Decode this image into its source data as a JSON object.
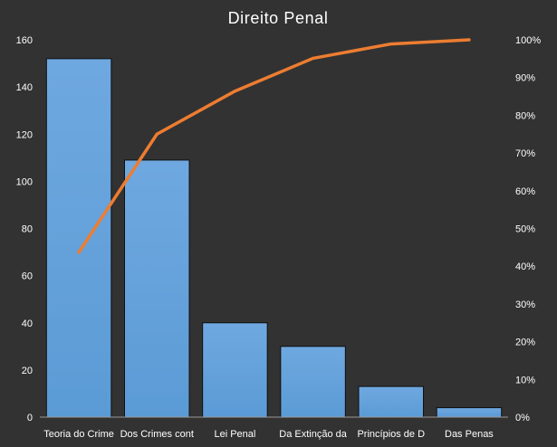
{
  "chart_data": {
    "type": "bar",
    "title": "Direito Penal",
    "xlabel": "",
    "ylabel": "",
    "categories": [
      "Teoria do Crime",
      "Dos Crimes cont",
      "Lei Penal",
      "Da Extinção da",
      "Princípios de D",
      "Das Penas"
    ],
    "series": [
      {
        "type": "bar",
        "values": [
          152,
          109,
          40,
          30,
          13,
          4
        ]
      },
      {
        "type": "line",
        "axis": "secondary",
        "values": [
          0.437,
          0.75,
          0.864,
          0.951,
          0.989,
          1.0
        ]
      }
    ],
    "ylim": [
      0,
      160
    ],
    "yticks": [
      "0",
      "20",
      "40",
      "60",
      "80",
      "100",
      "120",
      "140",
      "160"
    ],
    "y2lim": [
      0,
      1
    ],
    "y2ticks": [
      "0%",
      "10%",
      "20%",
      "30%",
      "40%",
      "50%",
      "60%",
      "70%",
      "80%",
      "90%",
      "100%"
    ],
    "grid": false,
    "legend": "none",
    "colors": {
      "background": "#323232",
      "bar_fill": "#5b9bd5",
      "bar_fill_light": "#6fa8e0",
      "bar_stroke": "#101010",
      "line": "#ed7d31",
      "text": "#ffffff",
      "axis": "#9a9a9a"
    }
  }
}
